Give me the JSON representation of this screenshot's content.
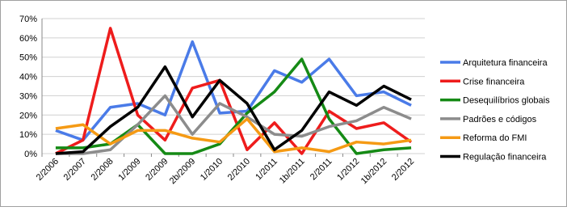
{
  "chart_data": {
    "type": "line",
    "categories": [
      "2/2006",
      "2/2007",
      "2/2008",
      "1/2009",
      "2/2009",
      "2b/2009",
      "1/2010",
      "2/2010",
      "1/2011",
      "1b/2011",
      "2/2011",
      "1/2012",
      "1b/2012",
      "2/2012"
    ],
    "series": [
      {
        "name": "Arquitetura financeira",
        "color": "#4a7be8",
        "values": [
          12,
          7,
          24,
          26,
          20,
          58,
          21,
          22,
          43,
          37,
          49,
          30,
          32,
          25
        ]
      },
      {
        "name": "Crise financeira",
        "color": "#ee1c1c",
        "values": [
          0,
          7,
          65,
          20,
          7,
          34,
          38,
          2,
          16,
          0,
          22,
          13,
          16,
          6
        ]
      },
      {
        "name": "Desequilíbrios globais",
        "color": "#158a15",
        "values": [
          3,
          3,
          5,
          15,
          0,
          0,
          5,
          21,
          32,
          49,
          18,
          0,
          2,
          3
        ]
      },
      {
        "name": "Padrões e códigos",
        "color": "#8c8c8c",
        "values": [
          0,
          0,
          2,
          15,
          30,
          10,
          26,
          19,
          10,
          9,
          14,
          17,
          24,
          18
        ]
      },
      {
        "name": "Reforma do FMI",
        "color": "#f59a14",
        "values": [
          13,
          15,
          5,
          12,
          12,
          8,
          6,
          18,
          1,
          3,
          1,
          6,
          5,
          7
        ]
      },
      {
        "name": "Regulação financeira",
        "color": "#000000",
        "values": [
          0,
          1,
          14,
          24,
          45,
          19,
          38,
          26,
          2,
          12,
          32,
          25,
          35,
          28
        ]
      }
    ],
    "ylim": [
      0,
      70
    ],
    "yticks": [
      {
        "value": 0,
        "label": "0%"
      },
      {
        "value": 10,
        "label": "10%"
      },
      {
        "value": 20,
        "label": "20%"
      },
      {
        "value": 30,
        "label": "30%"
      },
      {
        "value": 40,
        "label": "40%"
      },
      {
        "value": 50,
        "label": "50%"
      },
      {
        "value": 60,
        "label": "60%"
      },
      {
        "value": 70,
        "label": "70%"
      }
    ],
    "grid": true
  }
}
